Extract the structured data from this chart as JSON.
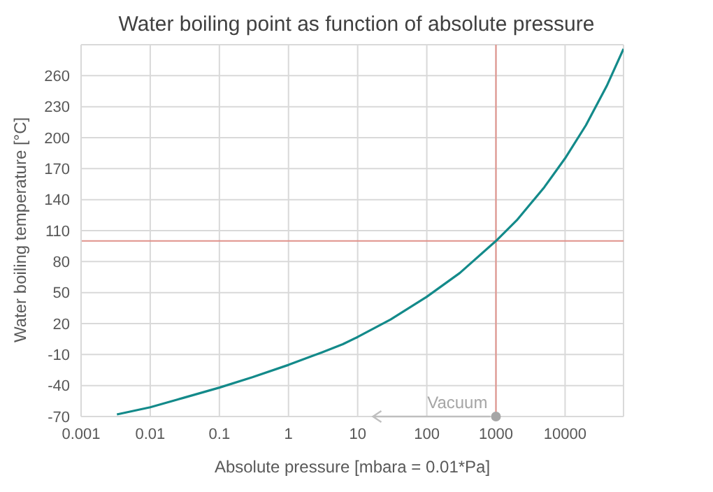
{
  "chart_data": {
    "type": "line",
    "title": "Water boiling point as function of absolute pressure",
    "xlabel": "Absolute pressure [mbara = 0.01*Pa]",
    "ylabel": "Water boiling temperature [°C]",
    "x": [
      0.0033,
      0.01,
      0.03,
      0.1,
      0.3,
      1,
      3,
      6.1,
      10,
      30,
      100,
      300,
      1000,
      2000,
      5000,
      10000,
      20000,
      40000,
      70000
    ],
    "series": [
      {
        "color": "#138a8a",
        "values": [
          -68,
          -61,
          -52,
          -42,
          -32,
          -20,
          -8,
          0,
          7,
          24,
          46,
          69,
          100,
          120,
          152,
          180,
          212,
          250,
          286
        ]
      }
    ],
    "log": "x",
    "xlim": [
      0.001,
      70000
    ],
    "xticks": [
      0.001,
      0.01,
      0.1,
      1,
      10,
      100,
      1000,
      10000
    ],
    "ylim": [
      -70,
      290
    ],
    "yticks": [
      -70,
      -40,
      -10,
      20,
      50,
      80,
      110,
      140,
      170,
      200,
      230,
      260
    ],
    "grid": true,
    "marker": "none",
    "line_style": "solid",
    "ref_lines": [
      {
        "axis": "x",
        "value": 1000,
        "color": "#e0918a"
      },
      {
        "axis": "y",
        "value": 100,
        "color": "#e0918a"
      }
    ],
    "annotations": [
      {
        "text": "Vacuum",
        "x": 1000,
        "y": -70
      }
    ]
  }
}
